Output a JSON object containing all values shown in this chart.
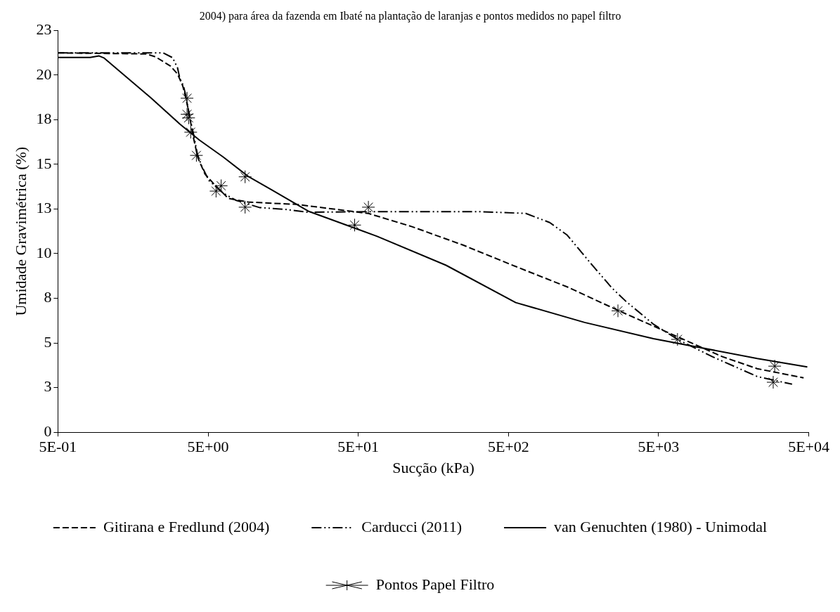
{
  "chart_data": {
    "type": "line",
    "title": "2004) para área da fazenda em Ibaté na plantação de laranjas e pontos medidos no papel filtro",
    "xlabel": "Sucção (kPa)",
    "ylabel": "Umidade Gravimétrica (%)",
    "log": "x",
    "grid": false,
    "legend": "bottom",
    "xlim": [
      0.5,
      50000
    ],
    "xticks": [
      {
        "value": 0.5,
        "label": "5E-01"
      },
      {
        "value": 5,
        "label": "5E+00"
      },
      {
        "value": 50,
        "label": "5E+01"
      },
      {
        "value": 500,
        "label": "5E+02"
      },
      {
        "value": 5000,
        "label": "5E+03"
      },
      {
        "value": 50000,
        "label": "5E+04"
      }
    ],
    "ylim": [
      0,
      22.5
    ],
    "yticks": [
      0,
      {
        "value": 2.5,
        "label": "3"
      },
      {
        "value": 5,
        "label": "5"
      },
      {
        "value": 7.5,
        "label": "8"
      },
      {
        "value": 10,
        "label": "10"
      },
      {
        "value": 12.5,
        "label": "13"
      },
      {
        "value": 15,
        "label": "15"
      },
      {
        "value": 17.5,
        "label": "18"
      },
      {
        "value": 20,
        "label": "20"
      },
      {
        "value": 22.5,
        "label": "23"
      }
    ],
    "series": [
      {
        "name": "Gitirana e Fredlund (2004)",
        "color": "#000000",
        "line_style": "dashed",
        "marker": "none",
        "x": [
          0.5,
          1.94,
          2.24,
          2.8,
          3.13,
          3.39,
          3.58,
          3.78,
          4.0,
          4.28,
          4.78,
          5.47,
          6.82,
          9.22,
          13.3,
          19.2,
          58.4,
          114,
          251,
          559,
          1230,
          2740,
          6040,
          13300,
          22700,
          46200
        ],
        "values": [
          21.24,
          21.18,
          21.01,
          20.51,
          20.06,
          19.39,
          18.61,
          17.6,
          16.46,
          15.35,
          14.44,
          13.9,
          13.09,
          12.89,
          12.82,
          12.76,
          12.25,
          11.51,
          10.47,
          9.28,
          8.14,
          6.79,
          5.51,
          4.23,
          3.56,
          3.05
        ]
      },
      {
        "name": "Carducci (2011)",
        "color": "#000000",
        "line_style": "dotted",
        "marker": "none",
        "x": [
          0.5,
          2.51,
          2.9,
          3.13,
          3.24,
          3.43,
          3.58,
          3.78,
          4.0,
          4.24,
          4.53,
          5.06,
          6.31,
          7.64,
          11.0,
          16.1,
          23.2,
          66.8,
          327,
          653,
          942,
          1230,
          1780,
          2450,
          3030,
          4620,
          6750,
          11400,
          22700,
          38700
        ],
        "values": [
          21.24,
          21.24,
          20.97,
          20.4,
          19.82,
          19.39,
          18.71,
          17.6,
          16.69,
          15.58,
          14.91,
          14.1,
          13.39,
          12.99,
          12.58,
          12.48,
          12.32,
          12.35,
          12.35,
          12.25,
          11.74,
          11.04,
          9.42,
          8.07,
          7.33,
          6.05,
          5.18,
          4.23,
          3.12,
          2.69
        ]
      },
      {
        "name": "van Genuchten (1980) - Unimodal",
        "color": "#000000",
        "line_style": "solid",
        "marker": "none",
        "x": [
          0.5,
          0.82,
          0.94,
          1.01,
          1.44,
          2.08,
          3.24,
          4.37,
          6.31,
          9.22,
          13.3,
          23.2,
          66.8,
          192,
          559,
          1607,
          4620,
          22700,
          48900
        ],
        "values": [
          20.98,
          20.98,
          21.07,
          20.96,
          19.86,
          18.72,
          17.26,
          16.36,
          15.41,
          14.33,
          13.56,
          12.38,
          10.97,
          9.35,
          7.26,
          6.15,
          5.24,
          4.13,
          3.66
        ]
      },
      {
        "name": "Pontos Papel Filtro",
        "type": "scatter",
        "color": "#000000",
        "marker": "cross",
        "x": [
          3.62,
          3.62,
          3.71,
          3.83,
          4.18,
          6.11,
          5.65,
          8.82,
          8.82,
          58.4,
          47.3,
          2680,
          6680,
          29650,
          28980
        ],
        "values": [
          18.7,
          17.8,
          17.6,
          16.8,
          15.5,
          13.8,
          13.5,
          14.3,
          12.6,
          12.6,
          11.6,
          6.8,
          5.2,
          3.7,
          2.8
        ]
      }
    ]
  }
}
